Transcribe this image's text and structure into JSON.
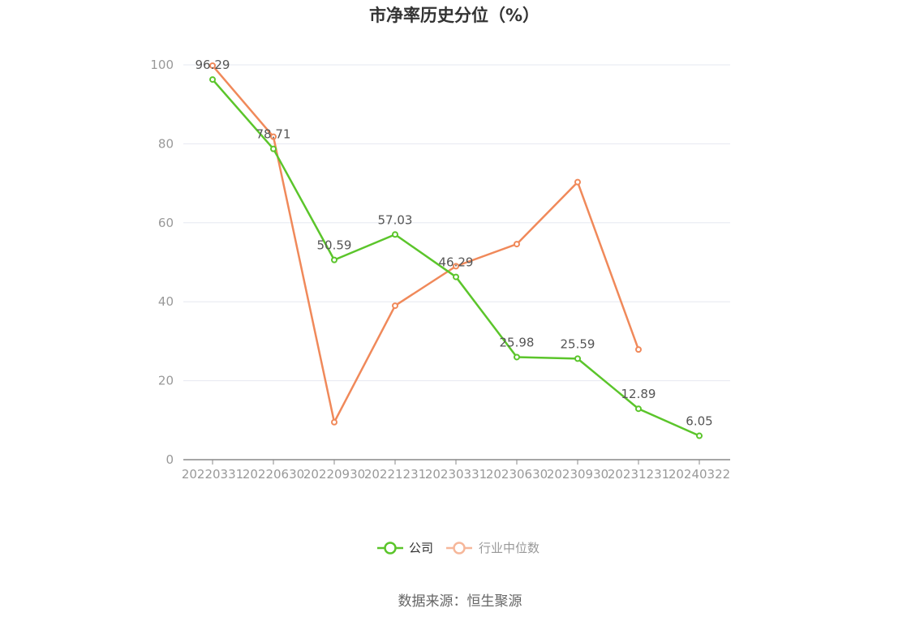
{
  "chart_data": {
    "type": "line",
    "title": "市净率历史分位（%）",
    "categories": [
      "20220331",
      "20220630",
      "20220930",
      "20221231",
      "20230331",
      "20230630",
      "20230930",
      "20231231",
      "20240322"
    ],
    "y_ticks": [
      "0",
      "20",
      "40",
      "60",
      "80",
      "100"
    ],
    "ylim": [
      0,
      100
    ],
    "grid": true,
    "legend_position": "bottom-center",
    "series": [
      {
        "name": "公司",
        "color": "#5bc52b",
        "values": [
          96.29,
          78.71,
          50.59,
          57.03,
          46.29,
          25.98,
          25.59,
          12.89,
          6.05
        ],
        "labels": [
          "96.29",
          "78.71",
          "50.59",
          "57.03",
          "46.29",
          "25.98",
          "25.59",
          "12.89",
          "6.05"
        ]
      },
      {
        "name": "行业中位数",
        "color": "#f0895a",
        "values": [
          99.8,
          81.8,
          9.5,
          39.0,
          49.0,
          54.6,
          70.3,
          27.9,
          null
        ]
      }
    ],
    "source": "数据来源：恒生聚源"
  }
}
